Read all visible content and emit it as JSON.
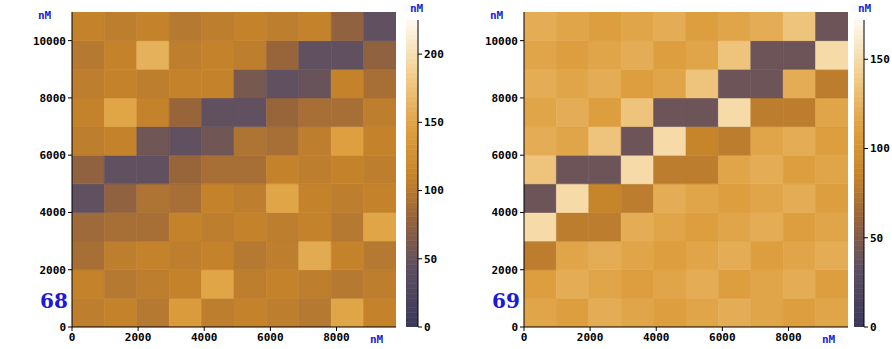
{
  "chart_data": [
    {
      "type": "heatmap",
      "panel_label": "68",
      "x_label": "nM",
      "y_label": "nM",
      "xlim": [
        0,
        9800
      ],
      "ylim": [
        0,
        11000
      ],
      "xticks": [
        0,
        2000,
        4000,
        6000,
        8000
      ],
      "yticks": [
        0,
        2000,
        4000,
        6000,
        8000,
        10000
      ],
      "cells": [
        [
          105,
          110,
          100,
          140,
          105,
          110,
          105,
          100,
          150,
          110
        ],
        [
          110,
          100,
          105,
          110,
          150,
          105,
          110,
          105,
          100,
          105
        ],
        [
          90,
          105,
          110,
          105,
          110,
          100,
          105,
          155,
          110,
          100
        ],
        [
          85,
          90,
          90,
          110,
          105,
          110,
          105,
          110,
          100,
          150
        ],
        [
          45,
          75,
          95,
          90,
          110,
          105,
          150,
          110,
          105,
          110
        ],
        [
          75,
          45,
          45,
          80,
          90,
          90,
          110,
          105,
          110,
          105
        ],
        [
          105,
          110,
          55,
          45,
          55,
          95,
          90,
          105,
          145,
          110
        ],
        [
          110,
          150,
          110,
          80,
          45,
          45,
          80,
          90,
          90,
          105
        ],
        [
          105,
          110,
          105,
          110,
          110,
          60,
          45,
          50,
          110,
          90
        ],
        [
          100,
          110,
          160,
          105,
          110,
          105,
          80,
          45,
          45,
          75
        ],
        [
          110,
          105,
          110,
          100,
          105,
          110,
          105,
          110,
          75,
          45
        ]
      ],
      "colorbar": {
        "label": "nM",
        "range": [
          0,
          225
        ],
        "ticks": [
          0,
          50,
          100,
          150,
          200
        ]
      }
    },
    {
      "type": "heatmap",
      "panel_label": "69",
      "x_label": "nM",
      "y_label": "nM",
      "xlim": [
        0,
        9800
      ],
      "ylim": [
        0,
        11000
      ],
      "xticks": [
        0,
        2000,
        4000,
        6000,
        8000
      ],
      "yticks": [
        0,
        2000,
        4000,
        6000,
        8000,
        10000
      ],
      "cells": [
        [
          115,
          110,
          120,
          115,
          110,
          115,
          120,
          115,
          110,
          115
        ],
        [
          110,
          120,
          115,
          110,
          115,
          120,
          110,
          115,
          120,
          110
        ],
        [
          80,
          115,
          120,
          115,
          110,
          115,
          120,
          110,
          115,
          120
        ],
        [
          150,
          80,
          80,
          120,
          115,
          110,
          115,
          120,
          110,
          115
        ],
        [
          40,
          150,
          85,
          80,
          120,
          115,
          110,
          115,
          120,
          110
        ],
        [
          135,
          40,
          40,
          150,
          80,
          80,
          115,
          120,
          110,
          115
        ],
        [
          120,
          115,
          135,
          40,
          150,
          85,
          80,
          115,
          120,
          110
        ],
        [
          115,
          120,
          110,
          135,
          40,
          40,
          150,
          80,
          80,
          115
        ],
        [
          120,
          115,
          120,
          110,
          115,
          135,
          40,
          40,
          120,
          80
        ],
        [
          115,
          110,
          115,
          120,
          110,
          115,
          135,
          40,
          40,
          150
        ],
        [
          120,
          115,
          110,
          115,
          120,
          110,
          115,
          120,
          135,
          40
        ]
      ],
      "colorbar": {
        "label": "nM",
        "range": [
          0,
          172
        ],
        "ticks": [
          0,
          50,
          100,
          150
        ]
      }
    }
  ]
}
